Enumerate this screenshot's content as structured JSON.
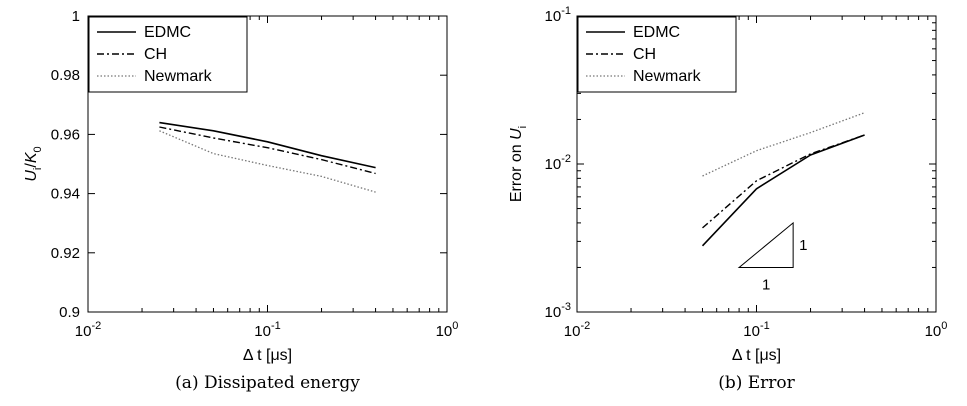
{
  "chart_data": [
    {
      "type": "line",
      "caption": "(a) Dissipated energy",
      "xlabel": "Δ t [μs]",
      "ylabel": {
        "base_u": "U",
        "sub_u": "i",
        "slash": "/",
        "base_k": "K",
        "sub_k": "0"
      },
      "xscale": "log",
      "xlim": [
        0.01,
        1
      ],
      "ylim": [
        0.9,
        1
      ],
      "xticks": [
        {
          "base": "10",
          "exp": "-2"
        },
        {
          "base": "10",
          "exp": "-1"
        },
        {
          "base": "10",
          "exp": "0"
        }
      ],
      "yticks": [
        "0.9",
        "0.92",
        "0.94",
        "0.96",
        "0.98",
        "1"
      ],
      "yticks_values": [
        0.9,
        0.92,
        0.94,
        0.96,
        0.98,
        1.0
      ],
      "legend_position": "top-left",
      "series": [
        {
          "name": "EDMC",
          "style": "solid",
          "x": [
            0.025,
            0.05,
            0.1,
            0.2,
            0.4
          ],
          "y": [
            0.964,
            0.9612,
            0.9575,
            0.9528,
            0.9488
          ]
        },
        {
          "name": "CH",
          "style": "dashdot",
          "x": [
            0.025,
            0.05,
            0.1,
            0.2,
            0.4
          ],
          "y": [
            0.9625,
            0.9588,
            0.9555,
            0.9515,
            0.9468
          ]
        },
        {
          "name": "Newmark",
          "style": "dotted",
          "x": [
            0.025,
            0.05,
            0.1,
            0.2,
            0.4
          ],
          "y": [
            0.9612,
            0.9535,
            0.9495,
            0.9458,
            0.9405
          ]
        }
      ]
    },
    {
      "type": "line",
      "caption": "(b) Error",
      "xlabel": "Δ t [μs]",
      "ylabel": {
        "text": "Error on ",
        "base_u": "U",
        "sub_u": "i"
      },
      "xscale": "log",
      "yscale": "log",
      "xlim": [
        0.01,
        1
      ],
      "ylim": [
        0.001,
        0.1
      ],
      "xticks": [
        {
          "base": "10",
          "exp": "-2"
        },
        {
          "base": "10",
          "exp": "-1"
        },
        {
          "base": "10",
          "exp": "0"
        }
      ],
      "yticks": [
        {
          "base": "10",
          "exp": "-3"
        },
        {
          "base": "10",
          "exp": "-2"
        },
        {
          "base": "10",
          "exp": "-1"
        }
      ],
      "legend_position": "top-left",
      "slope_triangle": {
        "x": [
          0.08,
          0.16
        ],
        "y": [
          0.002,
          0.004
        ],
        "run_label": "1",
        "rise_label": "1"
      },
      "series": [
        {
          "name": "EDMC",
          "style": "solid",
          "x": [
            0.05,
            0.1,
            0.2,
            0.4
          ],
          "y": [
            0.0028,
            0.0068,
            0.0115,
            0.0157
          ]
        },
        {
          "name": "CH",
          "style": "dashdot",
          "x": [
            0.05,
            0.1,
            0.2,
            0.4
          ],
          "y": [
            0.0037,
            0.0077,
            0.0117,
            0.0157
          ]
        },
        {
          "name": "Newmark",
          "style": "dotted",
          "x": [
            0.05,
            0.1,
            0.2,
            0.4
          ],
          "y": [
            0.0083,
            0.0123,
            0.0163,
            0.0222
          ]
        }
      ]
    }
  ]
}
